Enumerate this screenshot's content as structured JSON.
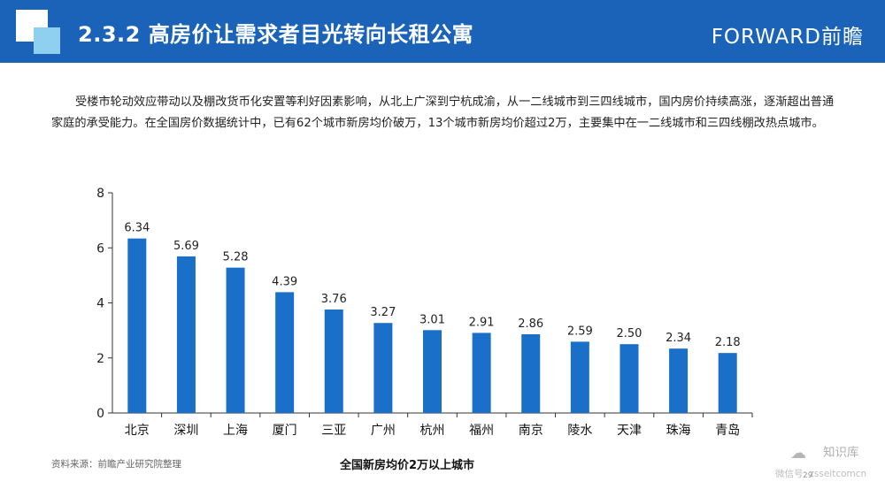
{
  "header": {
    "title": "2.3.2 高房价让需求者目光转向长租公寓",
    "brand": "FORWARD前瞻"
  },
  "intro_text": "受楼市轮动效应带动以及棚改货币化安置等利好因素影响，从北上广深到宁杭成渝，从一二线城市到三四线城市，国内房价持续高涨，逐渐超出普通家庭的承受能力。在全国房价数据统计中，已有62个城市新房均价破万，13个城市新房均价超过2万，主要集中在一二线城市和三四线棚改热点城市。",
  "chart_data": {
    "type": "bar",
    "title": "全国新房均价2万以上城市",
    "xlabel": "",
    "ylabel": "",
    "categories": [
      "北京",
      "深圳",
      "上海",
      "厦门",
      "三亚",
      "广州",
      "杭州",
      "福州",
      "南京",
      "陵水",
      "天津",
      "珠海",
      "青岛"
    ],
    "values": [
      6.34,
      5.69,
      5.28,
      4.39,
      3.76,
      3.27,
      3.01,
      2.91,
      2.86,
      2.59,
      2.5,
      2.34,
      2.18
    ],
    "value_labels": [
      "6.34",
      "5.69",
      "5.28",
      "4.39",
      "3.76",
      "3.27",
      "3.01",
      "2.91",
      "2.86",
      "2.59",
      "2.50",
      "2.34",
      "2.18"
    ],
    "ylim": [
      0,
      8
    ],
    "yticks": [
      0,
      2,
      4,
      6,
      8
    ],
    "grid": false,
    "legend": "none",
    "bar_color": "#1a70c8"
  },
  "source": "资料来源：前瞻产业研究院整理",
  "footer": {
    "wechat_label": "知识库",
    "wechat_id": "微信号: zsseitcomcn",
    "page_number": "29"
  },
  "colors": {
    "header_bg": "#1a63b8",
    "accent_light": "#8fd0f0"
  }
}
